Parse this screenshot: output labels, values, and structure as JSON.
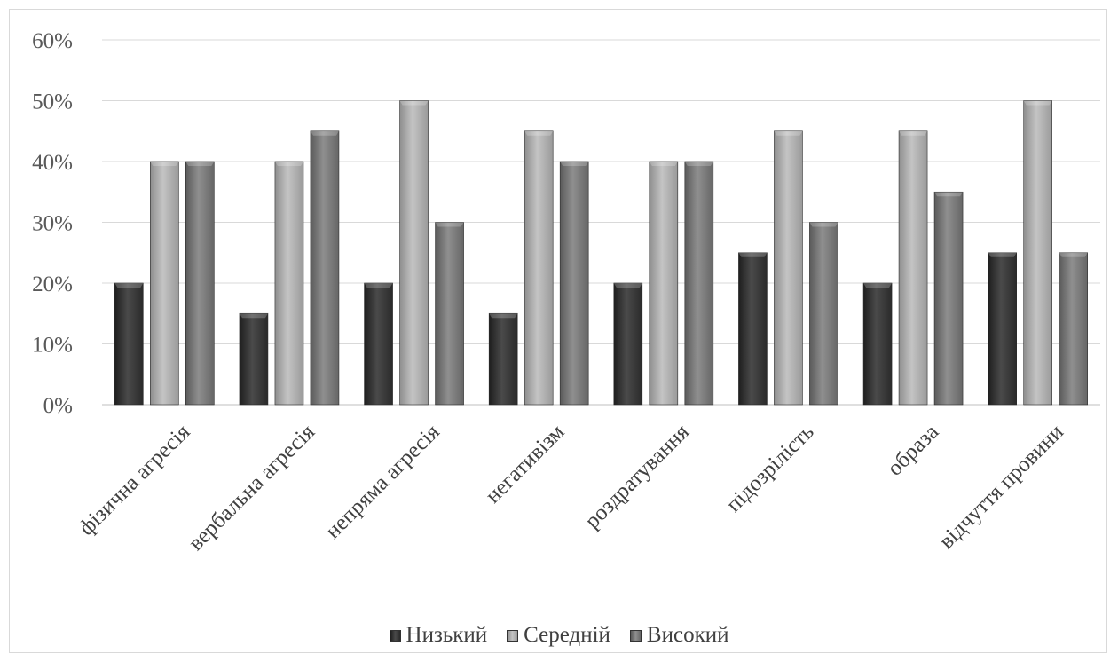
{
  "chart_data": {
    "type": "bar",
    "title": "",
    "xlabel": "",
    "ylabel": "",
    "ylim": [
      0,
      60
    ],
    "y_ticks": [
      "0%",
      "10%",
      "20%",
      "30%",
      "40%",
      "50%",
      "60%"
    ],
    "y_tick_values": [
      0,
      10,
      20,
      30,
      40,
      50,
      60
    ],
    "grid": true,
    "legend_position": "bottom",
    "categories": [
      "фізична агресія",
      "вербальна агресія",
      "непряма агресія",
      "негативізм",
      "роздратування",
      "підозрілість",
      "образа",
      "відчуття провини"
    ],
    "series": [
      {
        "name": "Низький",
        "color": "#3a3a3a",
        "values": [
          20,
          15,
          20,
          15,
          20,
          25,
          20,
          25
        ]
      },
      {
        "name": "Середній",
        "color": "#ababab",
        "values": [
          40,
          40,
          50,
          45,
          40,
          45,
          45,
          50
        ]
      },
      {
        "name": "Високий",
        "color": "#7a7a7a",
        "values": [
          40,
          45,
          30,
          40,
          40,
          30,
          35,
          25
        ]
      }
    ]
  }
}
